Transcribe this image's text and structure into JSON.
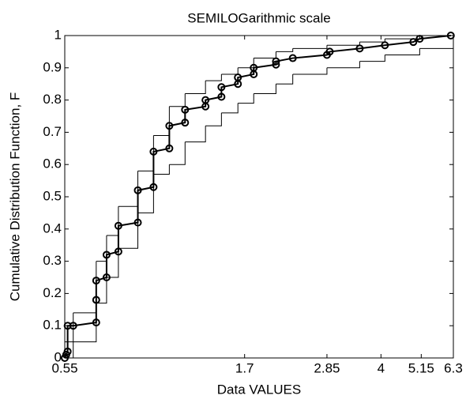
{
  "chart_data": {
    "type": "ecdf",
    "title": "SEMILOGarithmic scale",
    "x_label": "Data VALUES",
    "y_label": "Cumulative Distribution Function, F",
    "x_scale": "log",
    "xlim": [
      0.55,
      6.3
    ],
    "xticks": [
      0.55,
      1.7,
      2.85,
      4,
      5.15,
      6.3
    ],
    "ylim": [
      0,
      1
    ],
    "yticks": [
      0,
      0.1,
      0.2,
      0.3,
      0.4,
      0.5,
      0.6,
      0.7,
      0.8,
      0.9,
      1
    ],
    "grid": false,
    "series": [
      {
        "color": "#000000",
        "style": "line-markers",
        "x": [
          0.55,
          0.555,
          0.56,
          0.56,
          0.58,
          0.67,
          0.67,
          0.67,
          0.715,
          0.715,
          0.77,
          0.77,
          0.87,
          0.87,
          0.96,
          0.96,
          1.06,
          1.06,
          1.17,
          1.17,
          1.33,
          1.33,
          1.47,
          1.47,
          1.63,
          1.63,
          1.8,
          1.8,
          2.07,
          2.07,
          2.3,
          2.85,
          2.9,
          3.5,
          4.1,
          4.9,
          5.1,
          6.2
        ],
        "values": [
          0,
          0.01,
          0.02,
          0.1,
          0.1,
          0.11,
          0.18,
          0.24,
          0.25,
          0.32,
          0.33,
          0.41,
          0.42,
          0.52,
          0.53,
          0.64,
          0.65,
          0.72,
          0.73,
          0.77,
          0.78,
          0.8,
          0.81,
          0.84,
          0.85,
          0.87,
          0.88,
          0.9,
          0.91,
          0.92,
          0.93,
          0.94,
          0.95,
          0.96,
          0.97,
          0.98,
          0.99,
          1.0
        ]
      },
      {
        "color": "#000000",
        "style": "step",
        "x": [
          0.55,
          0.58,
          0.67,
          0.715,
          0.77,
          0.87,
          0.96,
          1.06,
          1.17,
          1.33,
          1.47,
          1.63,
          1.8,
          2.07,
          2.3,
          2.85,
          3.5,
          4.1,
          5.1,
          6.3
        ],
        "values": [
          0.05,
          0.14,
          0.3,
          0.38,
          0.47,
          0.58,
          0.69,
          0.78,
          0.82,
          0.86,
          0.88,
          0.9,
          0.93,
          0.95,
          0.96,
          0.97,
          0.98,
          0.99,
          1,
          1
        ]
      },
      {
        "color": "#000000",
        "style": "step",
        "x": [
          0.55,
          0.58,
          0.67,
          0.715,
          0.77,
          0.87,
          0.96,
          1.06,
          1.17,
          1.33,
          1.47,
          1.63,
          1.8,
          2.07,
          2.3,
          2.85,
          3.5,
          4.1,
          5.1,
          6.3
        ],
        "values": [
          0,
          0.05,
          0.17,
          0.25,
          0.34,
          0.45,
          0.57,
          0.6,
          0.67,
          0.72,
          0.76,
          0.79,
          0.82,
          0.85,
          0.88,
          0.9,
          0.92,
          0.94,
          0.96,
          0.98
        ]
      }
    ]
  }
}
